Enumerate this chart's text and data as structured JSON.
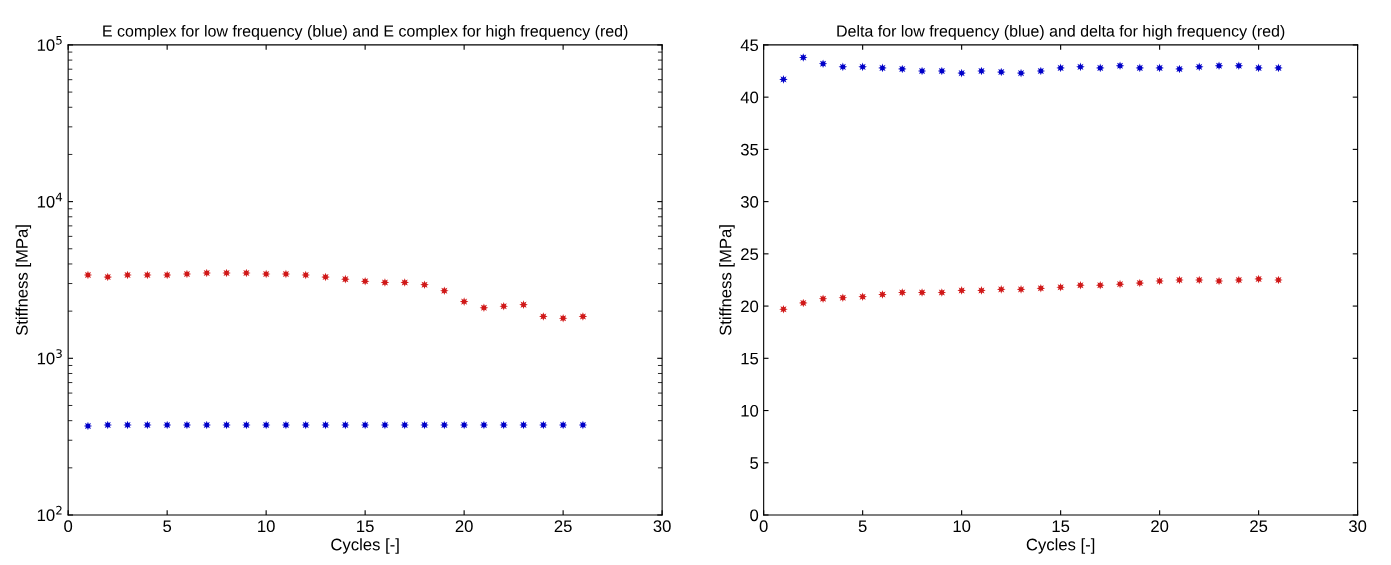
{
  "chart_data": [
    {
      "type": "scatter",
      "title": "E complex for low frequency (blue) and E complex for high frequency (red)",
      "xlabel": "Cycles [-]",
      "ylabel": "Stiffness [MPa]",
      "log": "y",
      "marker": "star",
      "grid": false,
      "x": [
        1,
        2,
        3,
        4,
        5,
        6,
        7,
        8,
        9,
        10,
        11,
        12,
        13,
        14,
        15,
        16,
        17,
        18,
        19,
        20,
        21,
        22,
        23,
        24,
        25,
        26
      ],
      "xlim": [
        0,
        30
      ],
      "xticks": [
        0,
        5,
        10,
        15,
        20,
        25,
        30
      ],
      "ylim": [
        100,
        100000
      ],
      "yticks": [
        {
          "value": 100,
          "label": "10$^{2}$"
        },
        {
          "value": 1000,
          "label": "10$^{3}$"
        },
        {
          "value": 10000,
          "label": "10$^{4}$"
        },
        {
          "value": 100000,
          "label": "10$^{5}$"
        }
      ],
      "series": [
        {
          "color": "#0000c8",
          "values": [
            370,
            375,
            375,
            375,
            375,
            375,
            375,
            375,
            375,
            375,
            375,
            375,
            375,
            375,
            375,
            375,
            375,
            375,
            375,
            375,
            375,
            375,
            375,
            375,
            375,
            375
          ]
        },
        {
          "color": "#d01818",
          "values": [
            3400,
            3300,
            3400,
            3400,
            3400,
            3450,
            3500,
            3500,
            3500,
            3450,
            3450,
            3400,
            3300,
            3200,
            3100,
            3050,
            3050,
            2950,
            2700,
            2300,
            2100,
            2150,
            2200,
            1850,
            1800,
            1850
          ]
        }
      ]
    },
    {
      "type": "scatter",
      "title": "Delta for low frequency (blue) and delta for high frequency (red)",
      "xlabel": "Cycles [-]",
      "ylabel": "Stiffness [MPa]",
      "marker": "star",
      "grid": false,
      "x": [
        1,
        2,
        3,
        4,
        5,
        6,
        7,
        8,
        9,
        10,
        11,
        12,
        13,
        14,
        15,
        16,
        17,
        18,
        19,
        20,
        21,
        22,
        23,
        24,
        25,
        26
      ],
      "xlim": [
        0,
        30
      ],
      "xticks": [
        0,
        5,
        10,
        15,
        20,
        25,
        30
      ],
      "ylim": [
        0,
        45
      ],
      "yticks": [
        0,
        5,
        10,
        15,
        20,
        25,
        30,
        35,
        40,
        45
      ],
      "series": [
        {
          "color": "#0000c8",
          "values": [
            41.7,
            43.8,
            43.2,
            42.9,
            42.9,
            42.8,
            42.7,
            42.5,
            42.5,
            42.3,
            42.5,
            42.4,
            42.3,
            42.5,
            42.8,
            42.9,
            42.8,
            43.0,
            42.8,
            42.8,
            42.7,
            42.9,
            43.0,
            43.0,
            42.8,
            42.8
          ]
        },
        {
          "color": "#d01818",
          "values": [
            19.7,
            20.3,
            20.7,
            20.8,
            20.9,
            21.1,
            21.3,
            21.3,
            21.3,
            21.5,
            21.5,
            21.6,
            21.6,
            21.7,
            21.8,
            22.0,
            22.0,
            22.1,
            22.2,
            22.4,
            22.5,
            22.5,
            22.4,
            22.5,
            22.6,
            22.5
          ]
        }
      ]
    }
  ]
}
